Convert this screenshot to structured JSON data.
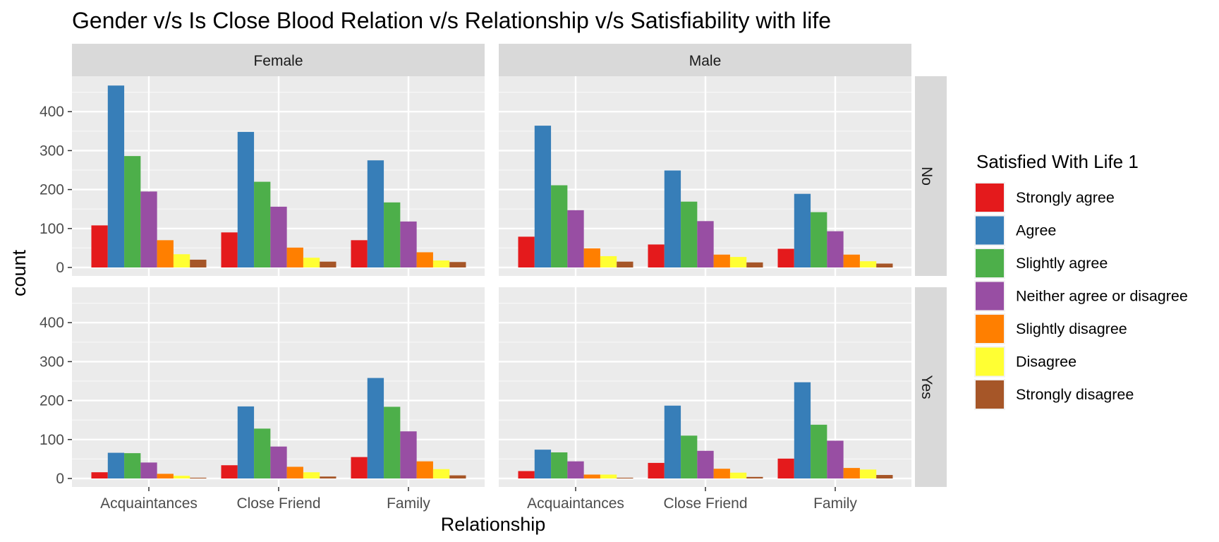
{
  "chart_data": {
    "type": "bar",
    "title": "Gender v/s Is Close Blood Relation v/s Relationship v/s Satisfiability with life",
    "xlabel": "Relationship",
    "ylabel": "count",
    "ylim": [
      0,
      480
    ],
    "y_ticks": [
      0,
      100,
      200,
      300,
      400
    ],
    "grid": true,
    "legend_position": "right",
    "legend_title": "Satisfied With Life 1",
    "categories": [
      "Acquaintances",
      "Close Friend",
      "Family"
    ],
    "facet_cols": [
      "Female",
      "Male"
    ],
    "facet_rows": [
      "No",
      "Yes"
    ],
    "series": [
      {
        "name": "Strongly agree",
        "color": "#E41A1C"
      },
      {
        "name": "Agree",
        "color": "#377EB8"
      },
      {
        "name": "Slightly agree",
        "color": "#4DAF4A"
      },
      {
        "name": "Neither agree or disagree",
        "color": "#984EA3"
      },
      {
        "name": "Slightly disagree",
        "color": "#FF7F00"
      },
      {
        "name": "Disagree",
        "color": "#FFFF33"
      },
      {
        "name": "Strongly disagree",
        "color": "#A65628"
      }
    ],
    "panels": [
      {
        "col": "Female",
        "row": "No",
        "values": [
          [
            108,
            467,
            286,
            195,
            70,
            34,
            20
          ],
          [
            90,
            348,
            220,
            156,
            51,
            25,
            15
          ],
          [
            70,
            275,
            167,
            118,
            39,
            18,
            14
          ]
        ]
      },
      {
        "col": "Male",
        "row": "No",
        "values": [
          [
            79,
            364,
            211,
            147,
            49,
            29,
            15
          ],
          [
            59,
            249,
            169,
            119,
            33,
            27,
            13
          ],
          [
            48,
            189,
            142,
            93,
            33,
            16,
            10
          ]
        ]
      },
      {
        "col": "Female",
        "row": "Yes",
        "values": [
          [
            16,
            66,
            65,
            41,
            12,
            7,
            2
          ],
          [
            34,
            185,
            128,
            82,
            30,
            16,
            5
          ],
          [
            55,
            258,
            184,
            121,
            44,
            24,
            8
          ]
        ]
      },
      {
        "col": "Male",
        "row": "Yes",
        "values": [
          [
            19,
            74,
            67,
            44,
            10,
            10,
            2
          ],
          [
            40,
            187,
            110,
            71,
            25,
            15,
            4
          ],
          [
            51,
            247,
            138,
            97,
            27,
            23,
            9
          ]
        ]
      }
    ]
  }
}
